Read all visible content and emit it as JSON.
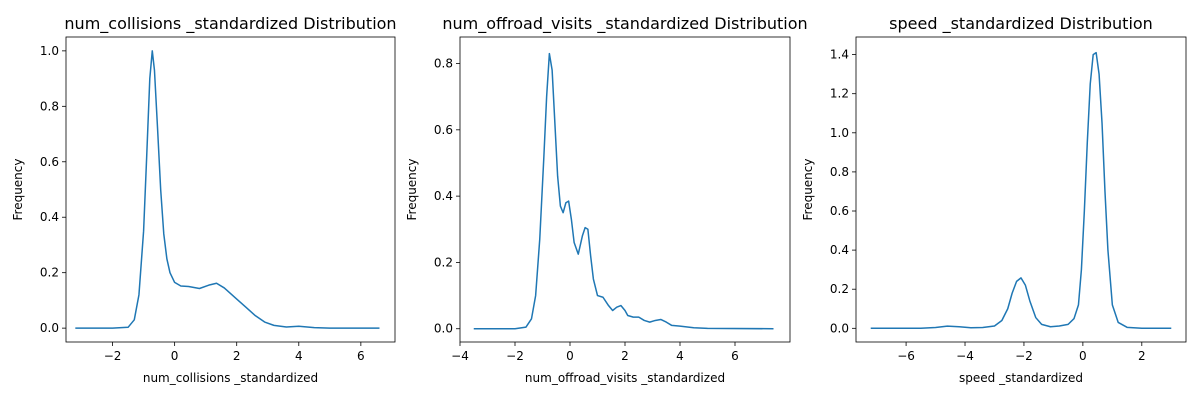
{
  "chart_data": [
    {
      "type": "line",
      "title": "num_collisions _standardized Distribution",
      "xlabel": "num_collisions _standardized",
      "ylabel": "Frequency",
      "xlim": [
        -3.5,
        7.1
      ],
      "ylim": [
        -0.05,
        1.05
      ],
      "xticks": [
        -2,
        0,
        2,
        4,
        6
      ],
      "xtick_labels": [
        "−2",
        "0",
        "2",
        "4",
        "6"
      ],
      "yticks": [
        0.0,
        0.2,
        0.4,
        0.6,
        0.8,
        1.0
      ],
      "ytick_labels": [
        "0.0",
        "0.2",
        "0.4",
        "0.6",
        "0.8",
        "1.0"
      ],
      "grid": false,
      "series": [
        {
          "color": "#1f77b4",
          "x": [
            -3.2,
            -2.0,
            -1.5,
            -1.3,
            -1.15,
            -1.0,
            -0.9,
            -0.8,
            -0.72,
            -0.65,
            -0.55,
            -0.45,
            -0.35,
            -0.25,
            -0.15,
            0.0,
            0.2,
            0.45,
            0.8,
            1.1,
            1.35,
            1.6,
            2.0,
            2.3,
            2.6,
            2.9,
            3.2,
            3.6,
            4.0,
            4.5,
            5.0,
            6.6
          ],
          "y": [
            0.0,
            0.0,
            0.003,
            0.03,
            0.12,
            0.35,
            0.62,
            0.9,
            1.0,
            0.93,
            0.72,
            0.5,
            0.34,
            0.25,
            0.2,
            0.165,
            0.152,
            0.15,
            0.143,
            0.155,
            0.162,
            0.145,
            0.105,
            0.075,
            0.045,
            0.022,
            0.01,
            0.004,
            0.007,
            0.002,
            0.0,
            0.0
          ]
        }
      ]
    },
    {
      "type": "line",
      "title": "num_offroad_visits _standardized Distribution",
      "xlabel": "num_offroad_visits _standardized",
      "ylabel": "Frequency",
      "xlim": [
        -4.0,
        8.0
      ],
      "ylim": [
        -0.04,
        0.88
      ],
      "xticks": [
        -4,
        -2,
        0,
        2,
        4,
        6
      ],
      "xtick_labels": [
        "−4",
        "−2",
        "0",
        "2",
        "4",
        "6"
      ],
      "yticks": [
        0.0,
        0.2,
        0.4,
        0.6,
        0.8
      ],
      "ytick_labels": [
        "0.0",
        "0.2",
        "0.4",
        "0.6",
        "0.8"
      ],
      "grid": false,
      "series": [
        {
          "color": "#1f77b4",
          "x": [
            -3.5,
            -2.0,
            -1.6,
            -1.4,
            -1.25,
            -1.1,
            -0.95,
            -0.85,
            -0.75,
            -0.65,
            -0.55,
            -0.45,
            -0.35,
            -0.25,
            -0.15,
            -0.05,
            0.05,
            0.15,
            0.3,
            0.45,
            0.55,
            0.65,
            0.75,
            0.85,
            1.0,
            1.2,
            1.4,
            1.55,
            1.7,
            1.85,
            2.0,
            2.1,
            2.3,
            2.5,
            2.7,
            2.9,
            3.1,
            3.3,
            3.5,
            3.7,
            4.0,
            4.5,
            5.0,
            7.4
          ],
          "y": [
            0.0,
            0.0,
            0.005,
            0.03,
            0.1,
            0.27,
            0.52,
            0.7,
            0.83,
            0.78,
            0.62,
            0.46,
            0.37,
            0.35,
            0.38,
            0.385,
            0.33,
            0.26,
            0.225,
            0.28,
            0.305,
            0.3,
            0.22,
            0.15,
            0.1,
            0.095,
            0.07,
            0.055,
            0.065,
            0.07,
            0.055,
            0.04,
            0.035,
            0.035,
            0.025,
            0.02,
            0.025,
            0.028,
            0.02,
            0.01,
            0.008,
            0.003,
            0.001,
            0.0
          ]
        }
      ]
    },
    {
      "type": "line",
      "title": "speed _standardized Distribution",
      "xlabel": "speed _standardized",
      "ylabel": "Frequency",
      "xlim": [
        -7.7,
        3.5
      ],
      "ylim": [
        -0.07,
        1.49
      ],
      "xticks": [
        -6,
        -4,
        -2,
        0,
        2
      ],
      "xtick_labels": [
        "−6",
        "−4",
        "−2",
        "0",
        "2"
      ],
      "yticks": [
        0.0,
        0.2,
        0.4,
        0.6,
        0.8,
        1.0,
        1.2,
        1.4
      ],
      "ytick_labels": [
        "0.0",
        "0.2",
        "0.4",
        "0.6",
        "0.8",
        "1.0",
        "1.2",
        "1.4"
      ],
      "grid": false,
      "series": [
        {
          "color": "#1f77b4",
          "x": [
            -7.2,
            -5.5,
            -5.0,
            -4.6,
            -4.2,
            -3.8,
            -3.4,
            -3.0,
            -2.75,
            -2.55,
            -2.4,
            -2.25,
            -2.1,
            -1.95,
            -1.8,
            -1.6,
            -1.4,
            -1.1,
            -0.8,
            -0.5,
            -0.3,
            -0.15,
            -0.05,
            0.05,
            0.15,
            0.25,
            0.35,
            0.45,
            0.55,
            0.65,
            0.75,
            0.85,
            1.0,
            1.2,
            1.5,
            2.0,
            3.0
          ],
          "y": [
            0.0,
            0.0,
            0.004,
            0.011,
            0.008,
            0.003,
            0.004,
            0.012,
            0.04,
            0.1,
            0.18,
            0.24,
            0.258,
            0.22,
            0.14,
            0.055,
            0.02,
            0.008,
            0.012,
            0.02,
            0.05,
            0.12,
            0.3,
            0.6,
            0.95,
            1.25,
            1.4,
            1.41,
            1.3,
            1.05,
            0.7,
            0.4,
            0.12,
            0.03,
            0.005,
            0.0,
            0.0
          ]
        }
      ]
    }
  ]
}
